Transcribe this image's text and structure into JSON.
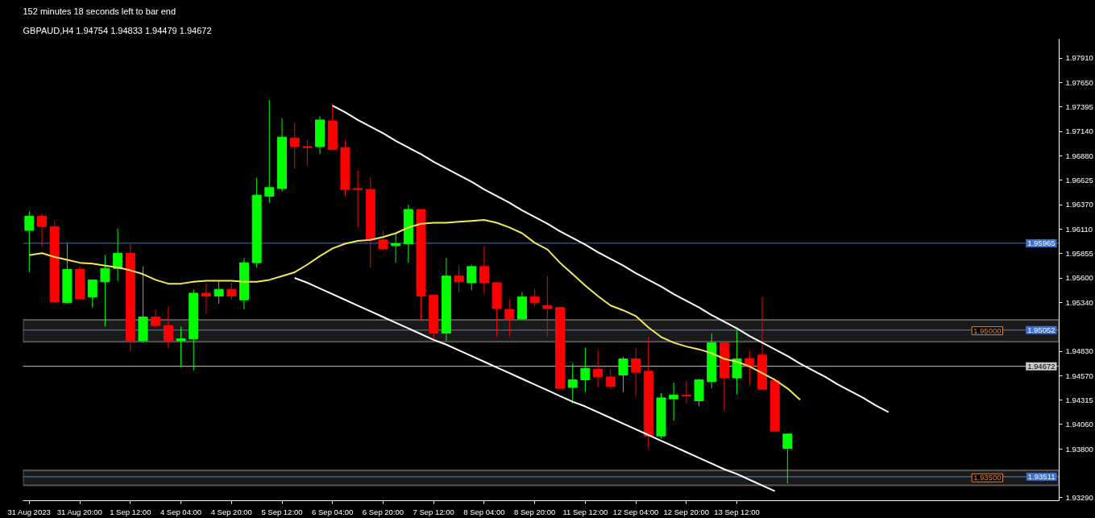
{
  "chart_data": {
    "type": "candlestick",
    "title": "GBPAUD,H4 1.94754 1.94833 1.94479 1.94672",
    "subtitle": "152 minutes 18 seconds left to bar end",
    "categories": [
      "31 Aug 2023",
      null,
      null,
      null,
      "31 Aug 20:00",
      null,
      null,
      null,
      "1 Sep 12:00",
      null,
      null,
      null,
      "4 Sep 04:00",
      null,
      null,
      null,
      "4 Sep 20:00",
      null,
      null,
      null,
      "5 Sep 12:00",
      null,
      null,
      null,
      "6 Sep 04:00",
      null,
      null,
      null,
      "6 Sep 20:00",
      null,
      null,
      null,
      "7 Sep 12:00",
      null,
      null,
      null,
      "8 Sep 04:00",
      null,
      null,
      null,
      "8 Sep 20:00",
      null,
      null,
      null,
      "11 Sep 12:00",
      null,
      null,
      null,
      "12 Sep 04:00",
      null,
      null,
      null,
      "12 Sep 20:00",
      null,
      null,
      null,
      "13 Sep 12:00",
      null,
      null,
      null,
      null,
      null,
      null,
      null,
      null,
      null,
      null,
      null,
      null,
      null,
      null,
      null,
      null,
      null,
      null,
      null,
      null,
      null,
      null,
      null,
      null,
      null
    ],
    "ohlc": [
      [
        1.961,
        1.963,
        1.9566,
        1.9625
      ],
      [
        1.9625,
        1.9628,
        1.9593,
        1.9614
      ],
      [
        1.9614,
        1.9619,
        1.9533,
        1.9535
      ],
      [
        1.9534,
        1.9596,
        1.9533,
        1.9569
      ],
      [
        1.9569,
        1.9572,
        1.9538,
        1.9538
      ],
      [
        1.954,
        1.9558,
        1.9529,
        1.9558
      ],
      [
        1.9556,
        1.9584,
        1.9509,
        1.957
      ],
      [
        1.957,
        1.9612,
        1.9557,
        1.9586
      ],
      [
        1.9586,
        1.9596,
        1.9483,
        1.9494
      ],
      [
        1.9494,
        1.9572,
        1.9492,
        1.9519
      ],
      [
        1.9519,
        1.9527,
        1.9508,
        1.951
      ],
      [
        1.951,
        1.953,
        1.9486,
        1.9494
      ],
      [
        1.9494,
        1.9509,
        1.9466,
        1.9496
      ],
      [
        1.9496,
        1.9548,
        1.9463,
        1.9544
      ],
      [
        1.9544,
        1.9554,
        1.9522,
        1.9541
      ],
      [
        1.9541,
        1.9557,
        1.9533,
        1.9548
      ],
      [
        1.9548,
        1.9555,
        1.9537,
        1.9541
      ],
      [
        1.9537,
        1.9581,
        1.9527,
        1.9576
      ],
      [
        1.9576,
        1.9665,
        1.9571,
        1.9647
      ],
      [
        1.9646,
        1.9747,
        1.9639,
        1.9655
      ],
      [
        1.9654,
        1.9728,
        1.9651,
        1.9708
      ],
      [
        1.9707,
        1.9723,
        1.9675,
        1.9698
      ],
      [
        1.9698,
        1.9705,
        1.9678,
        1.9697
      ],
      [
        1.9698,
        1.973,
        1.969,
        1.9726
      ],
      [
        1.9725,
        1.9743,
        1.9695,
        1.9695
      ],
      [
        1.9697,
        1.9705,
        1.9646,
        1.9653
      ],
      [
        1.9654,
        1.9673,
        1.9613,
        1.9653
      ],
      [
        1.9653,
        1.9666,
        1.9571,
        1.96
      ],
      [
        1.96,
        1.961,
        1.9589,
        1.9591
      ],
      [
        1.9594,
        1.9607,
        1.9576,
        1.9596
      ],
      [
        1.9596,
        1.9637,
        1.9576,
        1.9632
      ],
      [
        1.9632,
        1.9632,
        1.9516,
        1.9541
      ],
      [
        1.9542,
        1.9542,
        1.9496,
        1.9502
      ],
      [
        1.9502,
        1.9581,
        1.9494,
        1.9562
      ],
      [
        1.9562,
        1.9573,
        1.9545,
        1.9556
      ],
      [
        1.9555,
        1.9574,
        1.9547,
        1.9572
      ],
      [
        1.9572,
        1.9593,
        1.9544,
        1.9555
      ],
      [
        1.9555,
        1.9555,
        1.9498,
        1.9528
      ],
      [
        1.9527,
        1.9537,
        1.9498,
        1.9517
      ],
      [
        1.9517,
        1.9545,
        1.9516,
        1.954
      ],
      [
        1.954,
        1.9548,
        1.953,
        1.9534
      ],
      [
        1.9531,
        1.9562,
        1.9498,
        1.9528
      ],
      [
        1.9529,
        1.9529,
        1.9443,
        1.9444
      ],
      [
        1.9445,
        1.947,
        1.9428,
        1.9453
      ],
      [
        1.9453,
        1.9487,
        1.944,
        1.9465
      ],
      [
        1.9464,
        1.9484,
        1.9445,
        1.9456
      ],
      [
        1.9456,
        1.9464,
        1.9443,
        1.9446
      ],
      [
        1.9458,
        1.9477,
        1.944,
        1.9475
      ],
      [
        1.9475,
        1.9486,
        1.9436,
        1.9461
      ],
      [
        1.9462,
        1.9498,
        1.9381,
        1.9394
      ],
      [
        1.9394,
        1.9439,
        1.9391,
        1.9434
      ],
      [
        1.9433,
        1.945,
        1.941,
        1.9437
      ],
      [
        1.9437,
        1.9452,
        1.9428,
        1.9436
      ],
      [
        1.9431,
        1.9454,
        1.9425,
        1.9453
      ],
      [
        1.9451,
        1.9502,
        1.9444,
        1.9492
      ],
      [
        1.9492,
        1.9492,
        1.9421,
        1.9455
      ],
      [
        1.9455,
        1.9506,
        1.9438,
        1.9475
      ],
      [
        1.94754,
        1.94833,
        1.94479,
        1.94672
      ],
      [
        1.9479,
        1.954,
        1.9443,
        1.9443
      ],
      [
        1.9452,
        1.9454,
        1.9399,
        1.9399
      ],
      [
        1.9381,
        1.9396,
        1.9344,
        1.9396
      ],
      null,
      null,
      null,
      null,
      null,
      null,
      null,
      null,
      null,
      null,
      null,
      null,
      null,
      null,
      null,
      null,
      null,
      null,
      null,
      null,
      null
    ],
    "colors": [
      "#00ff00",
      "#ff0000",
      "#ff0000",
      "#00ff00",
      "#ff0000",
      "#00ff00",
      "#00ff00",
      "#00ff00",
      "#ff0000",
      "#00ff00",
      "#ff0000",
      "#ff0000",
      "#00ff00",
      "#00ff00",
      "#ff0000",
      "#00ff00",
      "#ff0000",
      "#00ff00",
      "#00ff00",
      "#00ff00",
      "#00ff00",
      "#ff0000",
      "#ff0000",
      "#00ff00",
      "#ff0000",
      "#ff0000",
      "#ff0000",
      "#ff0000",
      "#ff0000",
      "#00ff00",
      "#00ff00",
      "#ff0000",
      "#ff0000",
      "#00ff00",
      "#ff0000",
      "#00ff00",
      "#ff0000",
      "#ff0000",
      "#ff0000",
      "#00ff00",
      "#ff0000",
      "#ff0000",
      "#ff0000",
      "#00ff00",
      "#00ff00",
      "#ff0000",
      "#ff0000",
      "#00ff00",
      "#ff0000",
      "#ff0000",
      "#00ff00",
      "#00ff00",
      "#ff0000",
      "#00ff00",
      "#00ff00",
      "#ff0000",
      "#00ff00",
      "#ff0000",
      "#ff0000",
      "#ff0000",
      "#00ff00",
      null,
      null,
      null,
      null,
      null,
      null,
      null,
      null,
      null,
      null,
      null,
      null,
      null,
      null,
      null,
      null,
      null,
      null,
      null,
      null,
      null
    ],
    "series": [
      {
        "type": "line",
        "color": "#f2e85c",
        "values": [
          1.9584,
          1.9586,
          1.9582,
          1.9579,
          1.9576,
          1.9575,
          1.9573,
          1.9571,
          1.9568,
          1.9564,
          1.9558,
          1.9554,
          1.9554,
          1.9556,
          1.9557,
          1.9557,
          1.9557,
          1.9556,
          1.9556,
          1.9558,
          1.9562,
          1.9566,
          1.9574,
          1.9583,
          1.9591,
          1.9596,
          1.9599,
          1.96,
          1.9603,
          1.9607,
          1.9613,
          1.9617,
          1.9618,
          1.9618,
          1.9619,
          1.962,
          1.9621,
          1.9618,
          1.9613,
          1.9607,
          1.9597,
          1.959,
          1.9576,
          1.9564,
          1.9552,
          1.9541,
          1.9531,
          1.9526,
          1.952,
          1.9508,
          1.9498,
          1.9492,
          1.9488,
          1.9485,
          1.9481,
          1.9475,
          1.9472,
          1.9467,
          1.946,
          1.9453,
          1.9444,
          1.9432,
          null,
          null,
          null,
          null,
          null,
          null,
          null,
          null,
          null,
          null,
          null,
          null,
          null,
          null,
          null,
          null,
          null,
          null,
          null,
          null
        ]
      },
      {
        "type": "line",
        "color": "#ffffff",
        "values": [
          null,
          null,
          null,
          null,
          null,
          null,
          null,
          null,
          null,
          null,
          null,
          null,
          null,
          null,
          null,
          null,
          null,
          null,
          null,
          null,
          null,
          null,
          null,
          null,
          1.9741,
          1.9734,
          1.9726,
          1.9719,
          1.9712,
          1.9704,
          1.9697,
          1.969,
          1.9682,
          1.9675,
          1.9668,
          1.9661,
          1.9653,
          1.9646,
          1.9639,
          1.9631,
          1.9624,
          1.9617,
          1.9609,
          1.9602,
          1.9595,
          1.9587,
          1.958,
          1.9573,
          1.9565,
          1.9558,
          1.9551,
          1.9543,
          1.9536,
          1.9529,
          1.9521,
          1.9514,
          1.9507,
          1.9499,
          1.9492,
          1.9485,
          1.9478,
          1.947,
          1.9463,
          1.9456,
          1.9448,
          1.9441,
          1.9434,
          1.9426,
          1.9419,
          null,
          null,
          null,
          null,
          null,
          null,
          null,
          null,
          null,
          null,
          null,
          null,
          null
        ]
      },
      {
        "type": "line",
        "color": "#ffffff",
        "values": [
          null,
          null,
          null,
          null,
          null,
          null,
          null,
          null,
          null,
          null,
          null,
          null,
          null,
          null,
          null,
          null,
          null,
          null,
          null,
          null,
          null,
          1.956,
          1.9555,
          1.9549,
          1.9543,
          1.9537,
          1.9531,
          1.9525,
          1.9519,
          1.9513,
          1.9507,
          1.9501,
          1.9495,
          1.949,
          1.9484,
          1.9478,
          1.9472,
          1.9466,
          1.946,
          1.9454,
          1.9448,
          1.9442,
          1.9436,
          1.943,
          1.9425,
          1.9419,
          1.9413,
          1.9407,
          1.9401,
          1.9395,
          1.9389,
          1.9383,
          1.9377,
          1.9371,
          1.9365,
          1.9359,
          1.9354,
          1.9348,
          1.9342,
          1.9336,
          null,
          null,
          null,
          null,
          null,
          null,
          null,
          null,
          null,
          null,
          null,
          null,
          null,
          null,
          null,
          null,
          null,
          null,
          null,
          null,
          null,
          null
        ]
      }
    ],
    "ylim": [
      1.9326,
      1.9811
    ],
    "yticks": [
      {
        "value": 1.9791,
        "label": "1.97910"
      },
      {
        "value": 1.9765,
        "label": "1.97650"
      },
      1.97395,
      {
        "value": 1.9714,
        "label": "1.97140"
      },
      {
        "value": 1.9688,
        "label": "1.96880"
      },
      1.96625,
      {
        "value": 1.9637,
        "label": "1.96370"
      },
      {
        "value": 1.9611,
        "label": "1.96110"
      },
      1.95855,
      {
        "value": 1.956,
        "label": "1.95600"
      },
      {
        "value": 1.9534,
        "label": "1.95340"
      },
      {
        "value": 1.9483,
        "label": "1.94830"
      },
      {
        "value": 1.9457,
        "label": "1.94570"
      },
      1.94315,
      {
        "value": 1.9406,
        "label": "1.94060"
      },
      {
        "value": 1.938,
        "label": "1.93800"
      },
      {
        "value": 1.9329,
        "label": "1.93290"
      }
    ],
    "ref_lines": [
      {
        "axis": "y",
        "value": 1.95965,
        "label": "1.95965",
        "color": "#3c6fd1"
      },
      {
        "axis": "y",
        "value": 1.95052,
        "label": "1.95052",
        "color": "#3c6fd1"
      },
      {
        "axis": "y",
        "value": 1.94672,
        "label": "1.94672",
        "color": "#c8c8c8"
      },
      {
        "axis": "y",
        "value": 1.93511,
        "label": "1.93511",
        "color": "#3c6fd1"
      }
    ],
    "bands": [
      {
        "axis": "y",
        "from": 1.9493,
        "to": 1.9516,
        "label": "1.95000",
        "color": "#ffffff"
      },
      {
        "axis": "y",
        "from": 1.9342,
        "to": 1.9358,
        "label": "1.93500",
        "color": "#ffffff"
      }
    ],
    "grid": false
  }
}
